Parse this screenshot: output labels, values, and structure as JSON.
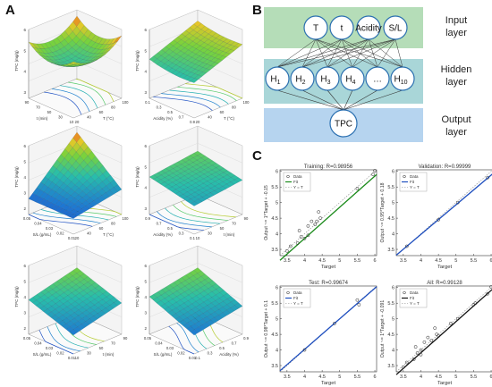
{
  "panels": {
    "a": "A",
    "b": "B",
    "c": "C"
  },
  "surfaces": [
    {
      "zlabel": "TPC (mg/g)",
      "xlabel": "t (min)",
      "ylabel": "T (°C)",
      "xticks": [
        "90",
        "70",
        "50",
        "30",
        "10"
      ],
      "yticks": [
        "20",
        "40",
        "60",
        "80",
        "100"
      ],
      "zticks": [
        "3",
        "4",
        "5",
        "6"
      ]
    },
    {
      "zlabel": "TPC (mg/g)",
      "xlabel": "Acidity (%)",
      "ylabel": "T (°C)",
      "xticks": [
        "0.1",
        "0.3",
        "0.5",
        "0.7",
        "0.9"
      ],
      "yticks": [
        "20",
        "40",
        "60",
        "80",
        "100"
      ],
      "zticks": [
        "3",
        "4",
        "5",
        "6"
      ]
    },
    {
      "zlabel": "TPC (mg/g)",
      "xlabel": "S/L (g/mL)",
      "ylabel": "T (°C)",
      "xticks": [
        "0.05",
        "0.04",
        "0.03",
        "0.02",
        "0.01"
      ],
      "yticks": [
        "20",
        "40",
        "60",
        "80",
        "100"
      ],
      "zticks": [
        "2",
        "3",
        "4",
        "5",
        "6"
      ]
    },
    {
      "zlabel": "TPC (mg/g)",
      "xlabel": "Acidity (%)",
      "ylabel": "t (min)",
      "xticks": [
        "0.9",
        "0.7",
        "0.5",
        "0.3",
        "0.1"
      ],
      "yticks": [
        "10",
        "30",
        "50",
        "70",
        "90"
      ],
      "zticks": [
        "3",
        "4",
        "5",
        "6"
      ]
    },
    {
      "zlabel": "TPC (mg/g)",
      "xlabel": "S/L (g/mL)",
      "ylabel": "t (min)",
      "xticks": [
        "0.05",
        "0.04",
        "0.03",
        "0.02",
        "0.01"
      ],
      "yticks": [
        "10",
        "30",
        "50",
        "70",
        "90"
      ],
      "zticks": [
        "2",
        "3",
        "4",
        "5",
        "6"
      ]
    },
    {
      "zlabel": "TPC (mg/g)",
      "xlabel": "S/L (g/mL)",
      "ylabel": "Acidity (%)",
      "xticks": [
        "0.05",
        "0.04",
        "0.03",
        "0.02",
        "0.01"
      ],
      "yticks": [
        "0.1",
        "0.3",
        "0.5",
        "0.7",
        "0.9"
      ],
      "zticks": [
        "2",
        "3",
        "4",
        "5",
        "6"
      ]
    }
  ],
  "network": {
    "inputs": [
      "T",
      "t",
      "Acidity",
      "S/L"
    ],
    "hidden_labels": [
      "1",
      "2",
      "3",
      "4",
      "…",
      "10"
    ],
    "hidden_prefix": "H",
    "output": "TPC",
    "layer_labels": [
      [
        "Input",
        "layer"
      ],
      [
        "Hidden",
        "layer"
      ],
      [
        "Output",
        "layer"
      ]
    ]
  },
  "chart_data": [
    {
      "type": "scatter",
      "title": "Training: R=0.98956",
      "xlabel": "Target",
      "ylabel": "Output ~= 1*Target + -0.15",
      "xlim": [
        3.3,
        6.05
      ],
      "ylim": [
        3.3,
        6.05
      ],
      "xticks": [
        3.5,
        4,
        4.5,
        5,
        5.5,
        6
      ],
      "yticks": [
        3.5,
        4,
        4.5,
        5,
        5.5,
        6
      ],
      "fit_color": "#1a8a1a",
      "legend": [
        "Data",
        "Fit",
        "Y = T"
      ],
      "fit": {
        "slope": 1.0,
        "intercept": -0.15
      },
      "points": [
        [
          3.5,
          3.45
        ],
        [
          3.6,
          3.6
        ],
        [
          3.8,
          3.7
        ],
        [
          3.85,
          4.1
        ],
        [
          3.9,
          3.9
        ],
        [
          4.0,
          3.85
        ],
        [
          4.1,
          4.25
        ],
        [
          4.2,
          4.4
        ],
        [
          4.3,
          4.3
        ],
        [
          4.35,
          4.4
        ],
        [
          4.4,
          4.7
        ],
        [
          4.45,
          4.5
        ],
        [
          4.1,
          3.95
        ],
        [
          5.5,
          5.45
        ],
        [
          5.95,
          5.9
        ],
        [
          6.0,
          6.02
        ]
      ]
    },
    {
      "type": "scatter",
      "title": "Validation: R=0.99999",
      "xlabel": "Target",
      "ylabel": "Output ~= 0.95*Target + 0.18",
      "xlim": [
        3.3,
        6.05
      ],
      "ylim": [
        3.3,
        6.05
      ],
      "xticks": [
        3.5,
        4,
        4.5,
        5,
        5.5,
        6
      ],
      "yticks": [
        3.5,
        4,
        4.5,
        5,
        5.5,
        6
      ],
      "fit_color": "#1f4fbf",
      "legend": [
        "Data",
        "Fit",
        "Y = T"
      ],
      "fit": {
        "slope": 0.95,
        "intercept": 0.18
      },
      "points": [
        [
          3.6,
          3.6
        ],
        [
          4.5,
          4.45
        ],
        [
          5.05,
          5.0
        ],
        [
          5.9,
          5.8
        ]
      ]
    },
    {
      "type": "scatter",
      "title": "Test: R=0.99674",
      "xlabel": "Target",
      "ylabel": "Output ~= 0.98*Target + 0.1",
      "xlim": [
        3.3,
        6.05
      ],
      "ylim": [
        3.3,
        6.05
      ],
      "xticks": [
        3.5,
        4,
        4.5,
        5,
        5.5,
        6
      ],
      "yticks": [
        3.5,
        4,
        4.5,
        5,
        5.5,
        6
      ],
      "fit_color": "#1f4fbf",
      "legend": [
        "Data",
        "Fit",
        "Y = T"
      ],
      "fit": {
        "slope": 0.98,
        "intercept": 0.1
      },
      "points": [
        [
          4.0,
          4.0
        ],
        [
          4.85,
          4.85
        ],
        [
          5.55,
          5.45
        ],
        [
          5.5,
          5.6
        ]
      ]
    },
    {
      "type": "scatter",
      "title": "All: R=0.99128",
      "xlabel": "Target",
      "ylabel": "Output ~= 1*Target + -0.091",
      "xlim": [
        3.3,
        6.05
      ],
      "ylim": [
        3.3,
        6.05
      ],
      "xticks": [
        3.5,
        4,
        4.5,
        5,
        5.5,
        6
      ],
      "yticks": [
        3.5,
        4,
        4.5,
        5,
        5.5,
        6
      ],
      "fit_color": "#111111",
      "legend": [
        "Data",
        "Fit",
        "Y = T"
      ],
      "fit": {
        "slope": 1.0,
        "intercept": -0.091
      },
      "points": [
        [
          3.5,
          3.45
        ],
        [
          3.6,
          3.6
        ],
        [
          3.8,
          3.7
        ],
        [
          3.85,
          4.1
        ],
        [
          3.9,
          3.9
        ],
        [
          4.0,
          3.85
        ],
        [
          4.0,
          4.0
        ],
        [
          4.1,
          4.25
        ],
        [
          4.2,
          4.4
        ],
        [
          4.3,
          4.3
        ],
        [
          4.4,
          4.7
        ],
        [
          4.45,
          4.5
        ],
        [
          4.5,
          4.45
        ],
        [
          4.85,
          4.85
        ],
        [
          5.05,
          5.0
        ],
        [
          5.5,
          5.45
        ],
        [
          5.55,
          5.5
        ],
        [
          5.9,
          5.8
        ],
        [
          6.0,
          6.02
        ]
      ]
    }
  ]
}
